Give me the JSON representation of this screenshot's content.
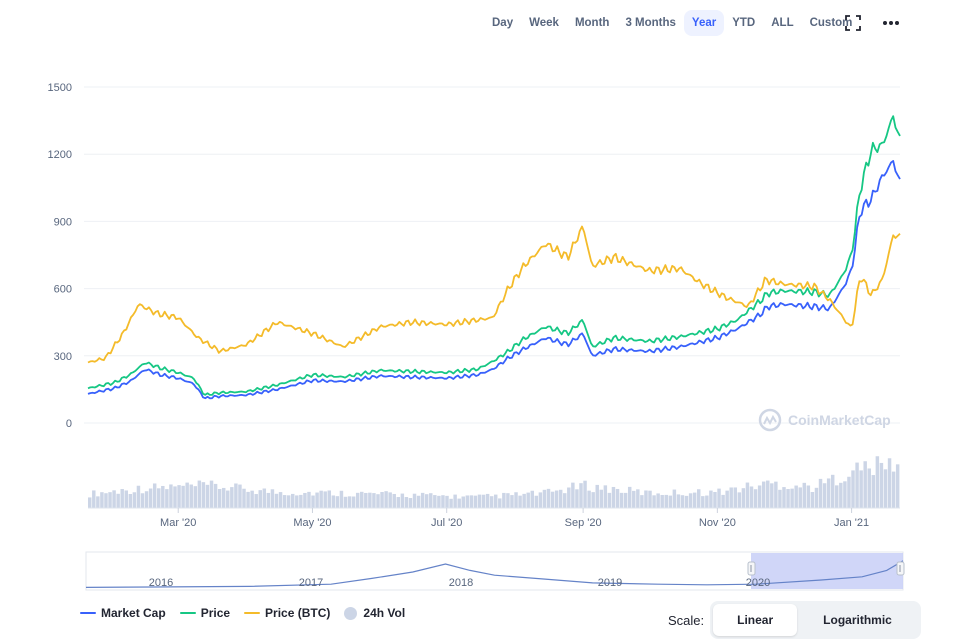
{
  "toolbar": {
    "ranges": [
      "Day",
      "Week",
      "Month",
      "3 Months",
      "Year",
      "YTD",
      "ALL",
      "Custom"
    ],
    "active_range": "Year",
    "expand_icon": "expand-icon",
    "more_icon": "more-dots-icon"
  },
  "watermark": "CoinMarketCap",
  "colors": {
    "market_cap": "#3861fb",
    "price": "#16c784",
    "price_btc": "#f4bb2a",
    "volume": "#ccd5e6",
    "navigator_line": "#6583c8",
    "navigator_selection": "#c8cff7",
    "grid": "#eef0f4"
  },
  "legend": [
    {
      "label": "Market Cap",
      "color": "#3861fb",
      "marker": "line"
    },
    {
      "label": "Price",
      "color": "#16c784",
      "marker": "line"
    },
    {
      "label": "Price (BTC)",
      "color": "#f4bb2a",
      "marker": "line"
    },
    {
      "label": "24h Vol",
      "color": "#ccd5e6",
      "marker": "dot"
    }
  ],
  "scale": {
    "label": "Scale:",
    "options": [
      "Linear",
      "Logarithmic"
    ],
    "selected": "Linear"
  },
  "chart_data": {
    "type": "line",
    "y_ticks": [
      0,
      300,
      600,
      900,
      1200,
      1500
    ],
    "ylim": [
      0,
      1500
    ],
    "x_tick_labels": [
      "Mar '20",
      "May '20",
      "Jul '20",
      "Sep '20",
      "Nov '20",
      "Jan '21"
    ],
    "x_tick_dates": [
      "2020-03-01",
      "2020-05-01",
      "2020-07-01",
      "2020-09-01",
      "2020-11-01",
      "2021-01-01"
    ],
    "x_range": [
      "2020-01-20",
      "2021-01-23"
    ],
    "grid": true,
    "legend_position": "bottom-left",
    "series": [
      {
        "name": "Market Cap",
        "color": "#3861fb",
        "points": [
          [
            "2020-01-20",
            130
          ],
          [
            "2020-02-01",
            155
          ],
          [
            "2020-02-08",
            185
          ],
          [
            "2020-02-15",
            240
          ],
          [
            "2020-02-22",
            215
          ],
          [
            "2020-03-01",
            200
          ],
          [
            "2020-03-08",
            175
          ],
          [
            "2020-03-13",
            110
          ],
          [
            "2020-03-20",
            120
          ],
          [
            "2020-04-01",
            125
          ],
          [
            "2020-04-15",
            150
          ],
          [
            "2020-05-01",
            190
          ],
          [
            "2020-05-15",
            185
          ],
          [
            "2020-06-01",
            210
          ],
          [
            "2020-06-15",
            205
          ],
          [
            "2020-07-01",
            200
          ],
          [
            "2020-07-15",
            215
          ],
          [
            "2020-07-22",
            240
          ],
          [
            "2020-07-29",
            290
          ],
          [
            "2020-08-05",
            330
          ],
          [
            "2020-08-15",
            380
          ],
          [
            "2020-08-25",
            350
          ],
          [
            "2020-09-01",
            400
          ],
          [
            "2020-09-05",
            300
          ],
          [
            "2020-09-15",
            330
          ],
          [
            "2020-10-01",
            320
          ],
          [
            "2020-10-15",
            340
          ],
          [
            "2020-11-01",
            380
          ],
          [
            "2020-11-10",
            420
          ],
          [
            "2020-11-20",
            480
          ],
          [
            "2020-11-24",
            520
          ],
          [
            "2020-12-01",
            530
          ],
          [
            "2020-12-15",
            520
          ],
          [
            "2020-12-22",
            510
          ],
          [
            "2020-12-28",
            600
          ],
          [
            "2021-01-01",
            680
          ],
          [
            "2021-01-05",
            950
          ],
          [
            "2021-01-10",
            1000
          ],
          [
            "2021-01-15",
            1100
          ],
          [
            "2021-01-20",
            1170
          ],
          [
            "2021-01-23",
            1070
          ]
        ]
      },
      {
        "name": "Price",
        "color": "#16c784",
        "points": [
          [
            "2020-01-20",
            155
          ],
          [
            "2020-02-01",
            180
          ],
          [
            "2020-02-08",
            215
          ],
          [
            "2020-02-15",
            270
          ],
          [
            "2020-02-22",
            245
          ],
          [
            "2020-03-01",
            225
          ],
          [
            "2020-03-08",
            200
          ],
          [
            "2020-03-13",
            125
          ],
          [
            "2020-03-20",
            135
          ],
          [
            "2020-04-01",
            140
          ],
          [
            "2020-04-15",
            170
          ],
          [
            "2020-05-01",
            215
          ],
          [
            "2020-05-15",
            205
          ],
          [
            "2020-06-01",
            235
          ],
          [
            "2020-06-15",
            230
          ],
          [
            "2020-07-01",
            225
          ],
          [
            "2020-07-15",
            240
          ],
          [
            "2020-07-22",
            275
          ],
          [
            "2020-07-29",
            320
          ],
          [
            "2020-08-05",
            375
          ],
          [
            "2020-08-15",
            430
          ],
          [
            "2020-08-25",
            400
          ],
          [
            "2020-09-01",
            460
          ],
          [
            "2020-09-05",
            340
          ],
          [
            "2020-09-15",
            380
          ],
          [
            "2020-10-01",
            365
          ],
          [
            "2020-10-15",
            385
          ],
          [
            "2020-11-01",
            420
          ],
          [
            "2020-11-10",
            460
          ],
          [
            "2020-11-20",
            540
          ],
          [
            "2020-11-24",
            580
          ],
          [
            "2020-12-01",
            590
          ],
          [
            "2020-12-15",
            585
          ],
          [
            "2020-12-22",
            570
          ],
          [
            "2020-12-28",
            660
          ],
          [
            "2021-01-01",
            750
          ],
          [
            "2021-01-05",
            1050
          ],
          [
            "2021-01-10",
            1220
          ],
          [
            "2021-01-15",
            1240
          ],
          [
            "2021-01-20",
            1370
          ],
          [
            "2021-01-23",
            1260
          ]
        ]
      },
      {
        "name": "Price (BTC)",
        "color": "#f4bb2a",
        "points": [
          [
            "2020-01-20",
            270
          ],
          [
            "2020-01-28",
            290
          ],
          [
            "2020-02-05",
            400
          ],
          [
            "2020-02-12",
            530
          ],
          [
            "2020-02-20",
            490
          ],
          [
            "2020-03-01",
            470
          ],
          [
            "2020-03-10",
            380
          ],
          [
            "2020-03-20",
            320
          ],
          [
            "2020-04-01",
            350
          ],
          [
            "2020-04-15",
            450
          ],
          [
            "2020-05-01",
            400
          ],
          [
            "2020-05-15",
            340
          ],
          [
            "2020-06-01",
            430
          ],
          [
            "2020-06-15",
            450
          ],
          [
            "2020-07-01",
            440
          ],
          [
            "2020-07-15",
            460
          ],
          [
            "2020-07-22",
            470
          ],
          [
            "2020-07-29",
            600
          ],
          [
            "2020-08-05",
            700
          ],
          [
            "2020-08-15",
            800
          ],
          [
            "2020-08-25",
            740
          ],
          [
            "2020-09-01",
            880
          ],
          [
            "2020-09-05",
            700
          ],
          [
            "2020-09-15",
            740
          ],
          [
            "2020-10-01",
            680
          ],
          [
            "2020-10-15",
            690
          ],
          [
            "2020-10-25",
            620
          ],
          [
            "2020-11-05",
            560
          ],
          [
            "2020-11-15",
            520
          ],
          [
            "2020-11-23",
            640
          ],
          [
            "2020-12-01",
            620
          ],
          [
            "2020-12-15",
            610
          ],
          [
            "2020-12-22",
            550
          ],
          [
            "2021-01-01",
            420
          ],
          [
            "2021-01-05",
            660
          ],
          [
            "2021-01-10",
            570
          ],
          [
            "2021-01-15",
            640
          ],
          [
            "2021-01-20",
            840
          ],
          [
            "2021-01-23",
            830
          ]
        ]
      }
    ],
    "volume": {
      "name": "24h Vol",
      "color": "#ccd5e6",
      "points": [
        [
          "2020-01-20",
          0.28
        ],
        [
          "2020-02-15",
          0.4
        ],
        [
          "2020-03-15",
          0.45
        ],
        [
          "2020-04-15",
          0.32
        ],
        [
          "2020-05-15",
          0.3
        ],
        [
          "2020-06-15",
          0.26
        ],
        [
          "2020-07-15",
          0.22
        ],
        [
          "2020-08-15",
          0.3
        ],
        [
          "2020-09-01",
          0.45
        ],
        [
          "2020-10-01",
          0.3
        ],
        [
          "2020-11-01",
          0.32
        ],
        [
          "2020-11-25",
          0.5
        ],
        [
          "2020-12-15",
          0.42
        ],
        [
          "2021-01-05",
          0.8
        ],
        [
          "2021-01-23",
          0.9
        ]
      ]
    },
    "navigator": {
      "year_labels": [
        "2016",
        "2017",
        "2018",
        "2019",
        "2020"
      ],
      "selection": [
        "2020-01-20",
        "2021-01-23"
      ]
    }
  }
}
